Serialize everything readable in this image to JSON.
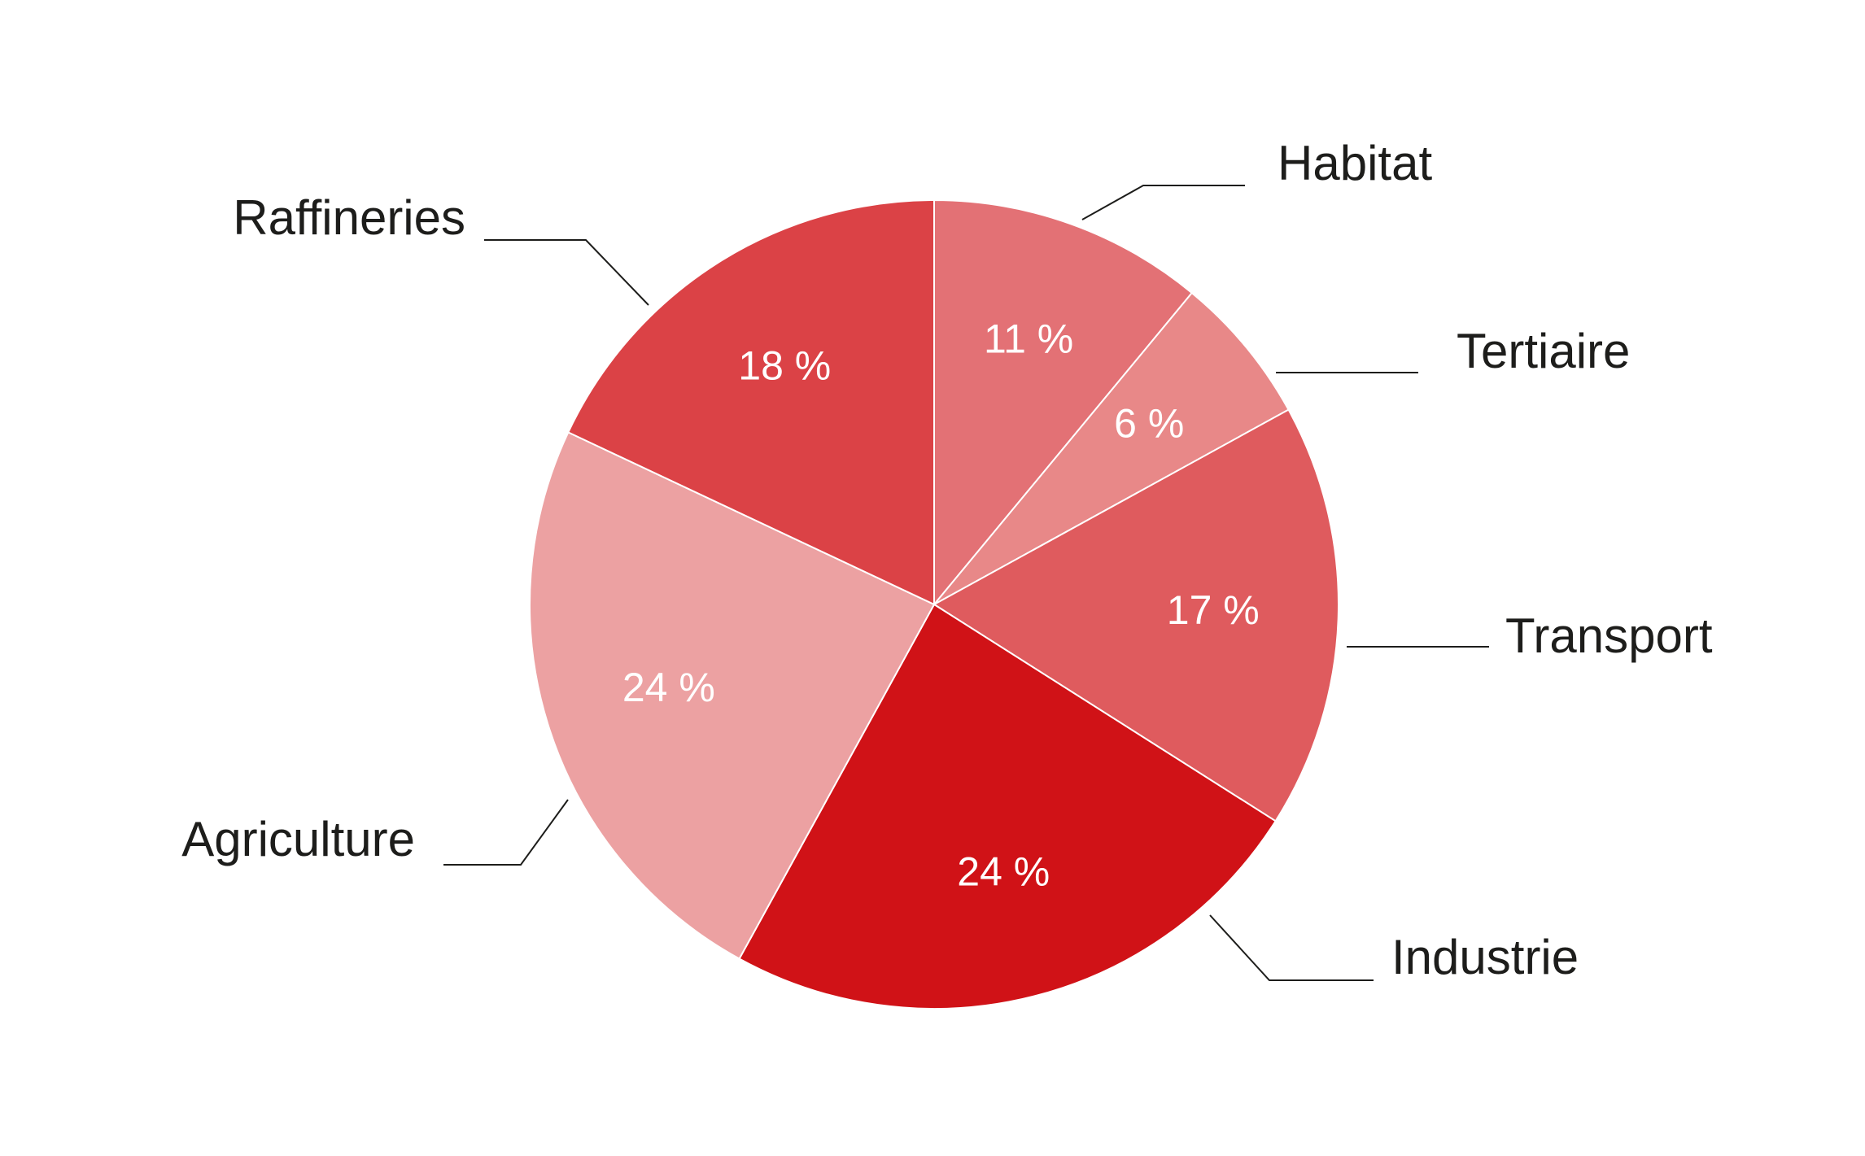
{
  "chart_data": {
    "type": "pie",
    "start_angle_deg": 0,
    "direction": "clockwise",
    "legend": "none",
    "slices": [
      {
        "category": "Habitat",
        "value": 11,
        "label": "11 %",
        "color": "#e37175"
      },
      {
        "category": "Tertiaire",
        "value": 6,
        "label": "6 %",
        "color": "#e88888"
      },
      {
        "category": "Transport",
        "value": 17,
        "label": "17 %",
        "color": "#df5b5e"
      },
      {
        "category": "Industrie",
        "value": 24,
        "label": "24 %",
        "color": "#d01217"
      },
      {
        "category": "Agriculture",
        "value": 24,
        "label": "24 %",
        "color": "#eca1a2"
      },
      {
        "category": "Raffineries",
        "value": 18,
        "label": "18 %",
        "color": "#db4246"
      }
    ]
  }
}
